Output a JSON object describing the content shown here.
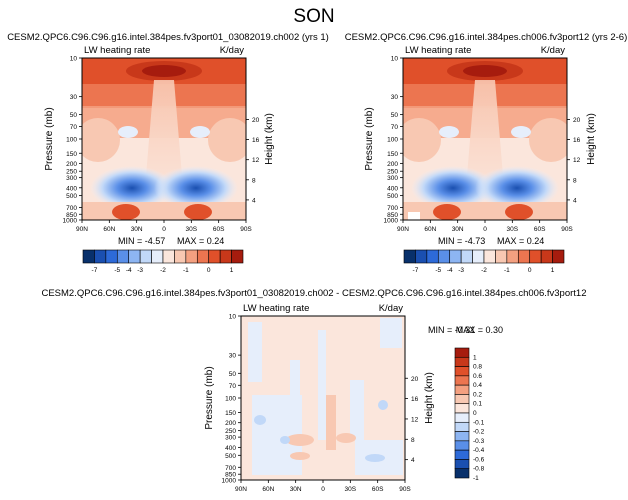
{
  "figure_title": "SON",
  "chart_data": [
    {
      "type": "heatmap",
      "title": "CESM2.QPC6.C96.C96.g16.intel.384pes.fv3port01_03082019.ch002 (yrs 1)",
      "left_label": "LW heating rate",
      "right_label": "K/day",
      "xlabel": "",
      "ylabel": "Pressure (mb)",
      "ylabel_right": "Height (km)",
      "x_ticks": [
        "90N",
        "60N",
        "30N",
        "0",
        "30S",
        "60S",
        "90S"
      ],
      "x_range": [
        90,
        -90
      ],
      "y_ticks": [
        10,
        30,
        50,
        70,
        100,
        150,
        200,
        250,
        300,
        400,
        500,
        700,
        850,
        1000
      ],
      "y_range": [
        10,
        1000
      ],
      "y_scale": "log",
      "height_ticks": [
        4,
        8,
        12,
        16,
        20
      ],
      "min_label": "MIN = -4.57",
      "max_label": "MAX = 0.24",
      "colorbar_levels": [
        -7,
        -6,
        -5,
        -4,
        -3,
        -2.5,
        -2,
        -1.5,
        -1,
        -0.5,
        0,
        0.5,
        1
      ],
      "colorbar_labels": [
        "-7",
        "-5",
        "-4",
        "-3",
        "-2",
        "-1",
        "0",
        "1"
      ],
      "colorbar_colors": [
        "#08306b",
        "#1a4fb0",
        "#2d6ad8",
        "#5a8fe8",
        "#8db5f2",
        "#c1d8f8",
        "#e6eefb",
        "#fbe6dc",
        "#f8c8b2",
        "#f4a080",
        "#ec7550",
        "#e0502a",
        "#c8381a",
        "#a61c0e"
      ]
    },
    {
      "type": "heatmap",
      "title": "CESM2.QPC6.C96.C96.g16.intel.384pes.ch006.fv3port12 (yrs 2-6)",
      "left_label": "LW heating rate",
      "right_label": "K/day",
      "xlabel": "",
      "ylabel": "Pressure (mb)",
      "ylabel_right": "Height (km)",
      "x_ticks": [
        "90N",
        "60N",
        "30N",
        "0",
        "30S",
        "60S",
        "90S"
      ],
      "x_range": [
        90,
        -90
      ],
      "y_ticks": [
        10,
        30,
        50,
        70,
        100,
        150,
        200,
        250,
        300,
        400,
        500,
        700,
        850,
        1000
      ],
      "y_range": [
        10,
        1000
      ],
      "y_scale": "log",
      "height_ticks": [
        4,
        8,
        12,
        16,
        20
      ],
      "min_label": "MIN = -4.73",
      "max_label": "MAX = 0.24",
      "colorbar_levels": [
        -7,
        -6,
        -5,
        -4,
        -3,
        -2.5,
        -2,
        -1.5,
        -1,
        -0.5,
        0,
        0.5,
        1
      ],
      "colorbar_labels": [
        "-7",
        "-5",
        "-4",
        "-3",
        "-2",
        "-1",
        "0",
        "1"
      ],
      "colorbar_colors": [
        "#08306b",
        "#1a4fb0",
        "#2d6ad8",
        "#5a8fe8",
        "#8db5f2",
        "#c1d8f8",
        "#e6eefb",
        "#fbe6dc",
        "#f8c8b2",
        "#f4a080",
        "#ec7550",
        "#e0502a",
        "#c8381a",
        "#a61c0e"
      ]
    },
    {
      "type": "heatmap",
      "title": "CESM2.QPC6.C96.C96.g16.intel.384pes.fv3port01_03082019.ch002 - CESM2.QPC6.C96.C96.g16.intel.384pes.ch006.fv3port12",
      "left_label": "LW heating rate",
      "right_label": "K/day",
      "xlabel": "",
      "ylabel": "Pressure (mb)",
      "ylabel_right": "Height (km)",
      "x_ticks": [
        "90N",
        "60N",
        "30N",
        "0",
        "30S",
        "60S",
        "90S"
      ],
      "x_range": [
        90,
        -90
      ],
      "y_ticks": [
        10,
        30,
        50,
        70,
        100,
        150,
        200,
        250,
        300,
        400,
        500,
        700,
        850,
        1000
      ],
      "y_range": [
        10,
        1000
      ],
      "y_scale": "log",
      "height_ticks": [
        4,
        8,
        12,
        16,
        20
      ],
      "min_label": "MIN = -0.31",
      "max_label": "MAX = 0.30",
      "colorbar_labels": [
        "1",
        "0.8",
        "0.6",
        "0.4",
        "0.2",
        "0.1",
        "0",
        "-0.1",
        "-0.2",
        "-0.3",
        "-0.4",
        "-0.6",
        "-0.8",
        "-1"
      ],
      "colorbar_colors": [
        "#a61c0e",
        "#c8381a",
        "#e0502a",
        "#ec7550",
        "#f4a080",
        "#f8c8b2",
        "#fbe6dc",
        "#e6eefb",
        "#c1d8f8",
        "#8db5f2",
        "#5a8fe8",
        "#2d6ad8",
        "#1a4fb0",
        "#08306b"
      ]
    }
  ]
}
